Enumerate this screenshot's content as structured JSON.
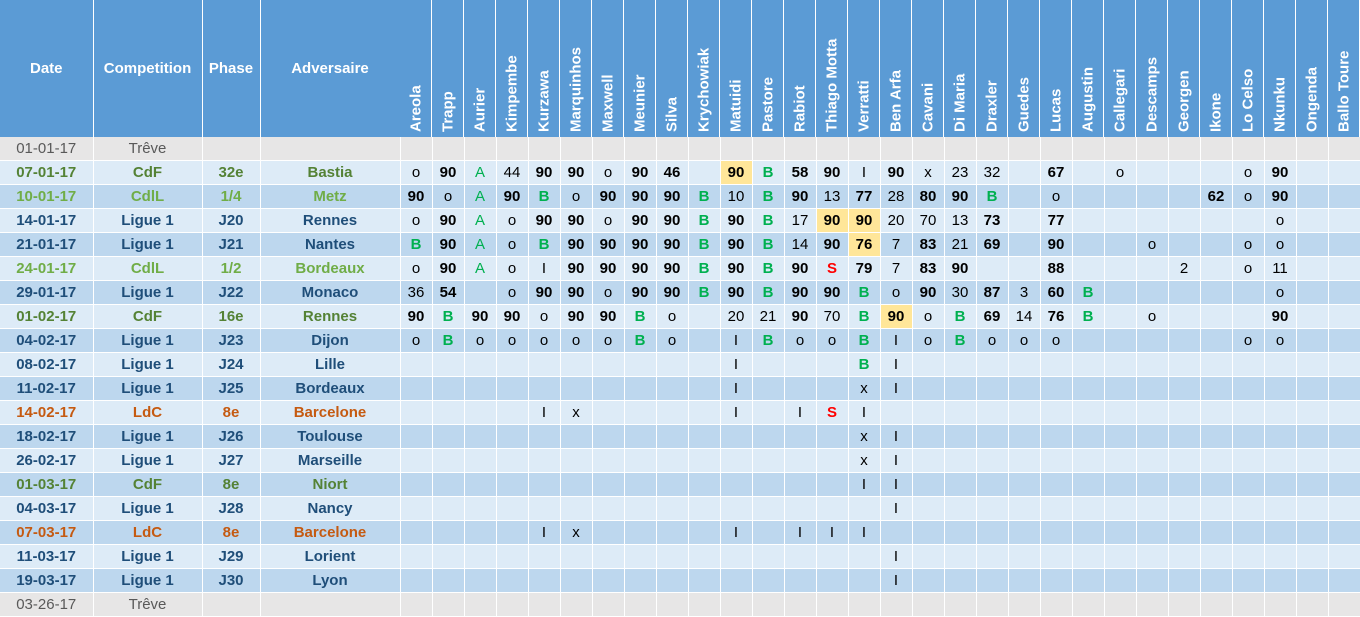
{
  "headers": {
    "date": "Date",
    "competition": "Competition",
    "phase": "Phase",
    "adversaire": "Adversaire",
    "players": [
      "Areola",
      "Trapp",
      "Aurier",
      "Kimpembe",
      "Kurzawa",
      "Marquinhos",
      "Maxwell",
      "Meunier",
      "Silva",
      "Krychowiak",
      "Matuidi",
      "Pastore",
      "Rabiot",
      "Thiago Motta",
      "Verratti",
      "Ben Arfa",
      "Cavani",
      "Di Maria",
      "Draxler",
      "Guedes",
      "Lucas",
      "Augustin",
      "Callegari",
      "Descamps",
      "Georgen",
      "Ikone",
      "Lo Celso",
      "Nkunku",
      "Ongenda",
      "Ballo Toure"
    ]
  },
  "colors": {
    "header_bg": "#5b9bd5",
    "row_light": "#ddebf7",
    "row_dark": "#bdd7ee",
    "treve_bg": "#e7e6e6",
    "ligue1": "#1f4e79",
    "cdf": "#548235",
    "cdl": "#70ad47",
    "ldc": "#c55a11",
    "highlight": "#ffe699",
    "green_mark": "#00b050",
    "red_mark": "#ff0000"
  },
  "rows": [
    {
      "date": "01-01-17",
      "competition": "Trêve",
      "phase": "",
      "adversaire": "",
      "type": "treve",
      "cells": [
        "",
        "",
        "",
        "",
        "",
        "",
        "",
        "",
        "",
        "",
        "",
        "",
        "",
        "",
        "",
        "",
        "",
        "",
        "",
        "",
        "",
        "",
        "",
        "",
        "",
        "",
        "",
        "",
        "",
        ""
      ]
    },
    {
      "date": "07-01-17",
      "competition": "CdF",
      "phase": "32e",
      "adversaire": "Bastia",
      "type": "cdf",
      "cells": [
        "o",
        "90",
        "A",
        "44",
        "90",
        "90",
        "o",
        "90",
        "46",
        "",
        "90",
        "B",
        "58",
        "90",
        "I",
        "90",
        "x",
        "23",
        "32",
        "",
        "67",
        "",
        "o",
        "",
        "",
        "",
        "o",
        "90",
        "",
        ""
      ]
    },
    {
      "date": "10-01-17",
      "competition": "CdlL",
      "phase": "1/4",
      "adversaire": "Metz",
      "type": "cdl",
      "cells": [
        "90",
        "o",
        "A",
        "90",
        "B",
        "o",
        "90",
        "90",
        "90",
        "B",
        "10",
        "B",
        "90",
        "13",
        "77",
        "28",
        "80",
        "90",
        "B",
        "",
        "o",
        "",
        "",
        "",
        "",
        "62",
        "o",
        "90",
        "",
        ""
      ]
    },
    {
      "date": "14-01-17",
      "competition": "Ligue 1",
      "phase": "J20",
      "adversaire": "Rennes",
      "type": "ligue",
      "cells": [
        "o",
        "90",
        "A",
        "o",
        "90",
        "90",
        "o",
        "90",
        "90",
        "B",
        "90",
        "B",
        "17",
        "90",
        "90",
        "20",
        "70",
        "13",
        "73",
        "",
        "77",
        "",
        "",
        "",
        "",
        "",
        "",
        "o",
        "",
        ""
      ]
    },
    {
      "date": "21-01-17",
      "competition": "Ligue 1",
      "phase": "J21",
      "adversaire": "Nantes",
      "type": "ligue",
      "cells": [
        "B",
        "90",
        "A",
        "o",
        "B",
        "90",
        "90",
        "90",
        "90",
        "B",
        "90",
        "B",
        "14",
        "90",
        "76",
        "7",
        "83",
        "21",
        "69",
        "",
        "90",
        "",
        "",
        "o",
        "",
        "",
        "o",
        "o",
        "",
        ""
      ]
    },
    {
      "date": "24-01-17",
      "competition": "CdlL",
      "phase": "1/2",
      "adversaire": "Bordeaux",
      "type": "cdl",
      "cells": [
        "o",
        "90",
        "A",
        "o",
        "I",
        "90",
        "90",
        "90",
        "90",
        "B",
        "90",
        "B",
        "90",
        "S",
        "79",
        "7",
        "83",
        "90",
        "",
        "",
        "88",
        "",
        "",
        "",
        "2",
        "",
        "o",
        "11",
        "",
        ""
      ]
    },
    {
      "date": "29-01-17",
      "competition": "Ligue 1",
      "phase": "J22",
      "adversaire": "Monaco",
      "type": "ligue",
      "cells": [
        "36",
        "54",
        "",
        "o",
        "90",
        "90",
        "o",
        "90",
        "90",
        "B",
        "90",
        "B",
        "90",
        "90",
        "B",
        "o",
        "90",
        "30",
        "87",
        "3",
        "60",
        "B",
        "",
        "",
        "",
        "",
        "",
        "o",
        "",
        ""
      ]
    },
    {
      "date": "01-02-17",
      "competition": "CdF",
      "phase": "16e",
      "adversaire": "Rennes",
      "type": "cdf",
      "cells": [
        "90",
        "B",
        "90",
        "90",
        "o",
        "90",
        "90",
        "B",
        "o",
        "",
        "20",
        "21",
        "90",
        "70",
        "B",
        "90",
        "o",
        "B",
        "69",
        "14",
        "76",
        "B",
        "",
        "o",
        "",
        "",
        "",
        "90",
        "",
        ""
      ]
    },
    {
      "date": "04-02-17",
      "competition": "Ligue 1",
      "phase": "J23",
      "adversaire": "Dijon",
      "type": "ligue",
      "cells": [
        "o",
        "B",
        "o",
        "o",
        "o",
        "o",
        "o",
        "B",
        "o",
        "",
        "I",
        "B",
        "o",
        "o",
        "B",
        "I",
        "o",
        "B",
        "o",
        "o",
        "o",
        "",
        "",
        "",
        "",
        "",
        "o",
        "o",
        "",
        ""
      ]
    },
    {
      "date": "08-02-17",
      "competition": "Ligue 1",
      "phase": "J24",
      "adversaire": "Lille",
      "type": "ligue",
      "cells": [
        "",
        "",
        "",
        "",
        "",
        "",
        "",
        "",
        "",
        "",
        "I",
        "",
        "",
        "",
        "B",
        "I",
        "",
        "",
        "",
        "",
        "",
        "",
        "",
        "",
        "",
        "",
        "",
        "",
        "",
        ""
      ]
    },
    {
      "date": "11-02-17",
      "competition": "Ligue 1",
      "phase": "J25",
      "adversaire": "Bordeaux",
      "type": "ligue",
      "cells": [
        "",
        "",
        "",
        "",
        "",
        "",
        "",
        "",
        "",
        "",
        "I",
        "",
        "",
        "",
        "x",
        "I",
        "",
        "",
        "",
        "",
        "",
        "",
        "",
        "",
        "",
        "",
        "",
        "",
        "",
        ""
      ]
    },
    {
      "date": "14-02-17",
      "competition": "LdC",
      "phase": "8e",
      "adversaire": "Barcelone",
      "type": "ldc",
      "cells": [
        "",
        "",
        "",
        "",
        "I",
        "x",
        "",
        "",
        "",
        "",
        "I",
        "",
        "I",
        "S",
        "I",
        "",
        "",
        "",
        "",
        "",
        "",
        "",
        "",
        "",
        "",
        "",
        "",
        "",
        "",
        ""
      ]
    },
    {
      "date": "18-02-17",
      "competition": "Ligue 1",
      "phase": "J26",
      "adversaire": "Toulouse",
      "type": "ligue",
      "cells": [
        "",
        "",
        "",
        "",
        "",
        "",
        "",
        "",
        "",
        "",
        "",
        "",
        "",
        "",
        "x",
        "I",
        "",
        "",
        "",
        "",
        "",
        "",
        "",
        "",
        "",
        "",
        "",
        "",
        "",
        ""
      ]
    },
    {
      "date": "26-02-17",
      "competition": "Ligue 1",
      "phase": "J27",
      "adversaire": "Marseille",
      "type": "ligue",
      "cells": [
        "",
        "",
        "",
        "",
        "",
        "",
        "",
        "",
        "",
        "",
        "",
        "",
        "",
        "",
        "x",
        "I",
        "",
        "",
        "",
        "",
        "",
        "",
        "",
        "",
        "",
        "",
        "",
        "",
        "",
        ""
      ]
    },
    {
      "date": "01-03-17",
      "competition": "CdF",
      "phase": "8e",
      "adversaire": "Niort",
      "type": "cdf",
      "cells": [
        "",
        "",
        "",
        "",
        "",
        "",
        "",
        "",
        "",
        "",
        "",
        "",
        "",
        "",
        "I",
        "I",
        "",
        "",
        "",
        "",
        "",
        "",
        "",
        "",
        "",
        "",
        "",
        "",
        "",
        ""
      ]
    },
    {
      "date": "04-03-17",
      "competition": "Ligue 1",
      "phase": "J28",
      "adversaire": "Nancy",
      "type": "ligue",
      "cells": [
        "",
        "",
        "",
        "",
        "",
        "",
        "",
        "",
        "",
        "",
        "",
        "",
        "",
        "",
        "",
        "I",
        "",
        "",
        "",
        "",
        "",
        "",
        "",
        "",
        "",
        "",
        "",
        "",
        "",
        ""
      ]
    },
    {
      "date": "07-03-17",
      "competition": "LdC",
      "phase": "8e",
      "adversaire": "Barcelone",
      "type": "ldc",
      "cells": [
        "",
        "",
        "",
        "",
        "I",
        "x",
        "",
        "",
        "",
        "",
        "I",
        "",
        "I",
        "I",
        "I",
        "",
        "",
        "",
        "",
        "",
        "",
        "",
        "",
        "",
        "",
        "",
        "",
        "",
        "",
        ""
      ]
    },
    {
      "date": "11-03-17",
      "competition": "Ligue 1",
      "phase": "J29",
      "adversaire": "Lorient",
      "type": "ligue",
      "cells": [
        "",
        "",
        "",
        "",
        "",
        "",
        "",
        "",
        "",
        "",
        "",
        "",
        "",
        "",
        "",
        "I",
        "",
        "",
        "",
        "",
        "",
        "",
        "",
        "",
        "",
        "",
        "",
        "",
        "",
        ""
      ]
    },
    {
      "date": "19-03-17",
      "competition": "Ligue 1",
      "phase": "J30",
      "adversaire": "Lyon",
      "type": "ligue",
      "cells": [
        "",
        "",
        "",
        "",
        "",
        "",
        "",
        "",
        "",
        "",
        "",
        "",
        "",
        "",
        "",
        "I",
        "",
        "",
        "",
        "",
        "",
        "",
        "",
        "",
        "",
        "",
        "",
        "",
        "",
        ""
      ]
    },
    {
      "date": "03-26-17",
      "competition": "Trêve",
      "phase": "",
      "adversaire": "",
      "type": "treve",
      "cells": [
        "",
        "",
        "",
        "",
        "",
        "",
        "",
        "",
        "",
        "",
        "",
        "",
        "",
        "",
        "",
        "",
        "",
        "",
        "",
        "",
        "",
        "",
        "",
        "",
        "",
        "",
        "",
        "",
        "",
        ""
      ]
    }
  ],
  "highlights": [
    {
      "row": 1,
      "col": 10
    },
    {
      "row": 3,
      "col": 13
    },
    {
      "row": 3,
      "col": 14
    },
    {
      "row": 4,
      "col": 14
    },
    {
      "row": 7,
      "col": 15
    }
  ]
}
